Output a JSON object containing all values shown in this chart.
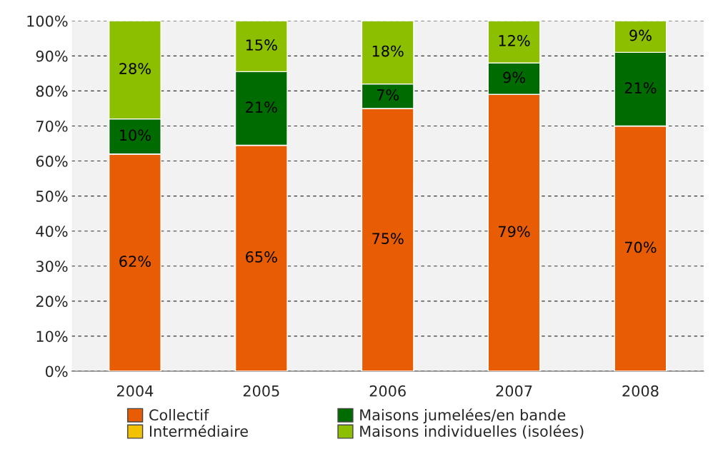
{
  "chart_data": {
    "type": "bar",
    "stacked": true,
    "categories": [
      "2004",
      "2005",
      "2006",
      "2007",
      "2008"
    ],
    "series": [
      {
        "name": "Collectif",
        "color": "#e85d04",
        "values": [
          62,
          64.5,
          75,
          79,
          70
        ],
        "value_labels": [
          "62%",
          "65%",
          "75%",
          "79%",
          "70%"
        ]
      },
      {
        "name": "Intermédiaire",
        "color": "#f2c200",
        "values": [
          0,
          0,
          0,
          0,
          0
        ],
        "value_labels": [
          null,
          null,
          null,
          null,
          null
        ]
      },
      {
        "name": "Maisons jumelées/en bande",
        "color": "#006b00",
        "values": [
          10,
          21,
          7,
          9,
          21
        ],
        "value_labels": [
          "10%",
          "21%",
          "7%",
          "9%",
          "21%"
        ]
      },
      {
        "name": "Maisons individuelles (isolées)",
        "color": "#8cbf00",
        "values": [
          28,
          14.5,
          18,
          12,
          9
        ],
        "value_labels": [
          "28%",
          "15%",
          "18%",
          "12%",
          "9%"
        ]
      }
    ],
    "ylim": [
      0,
      100
    ],
    "yticks": [
      {
        "value": 0,
        "label": "0%"
      },
      {
        "value": 10,
        "label": "10%"
      },
      {
        "value": 20,
        "label": "20%"
      },
      {
        "value": 30,
        "label": "30%"
      },
      {
        "value": 40,
        "label": "40%"
      },
      {
        "value": 50,
        "label": "50%"
      },
      {
        "value": 60,
        "label": "60%"
      },
      {
        "value": 70,
        "label": "70%"
      },
      {
        "value": 80,
        "label": "80%"
      },
      {
        "value": 90,
        "label": "90%"
      },
      {
        "value": 100,
        "label": "100%"
      }
    ],
    "grid": "y",
    "legend": "bottom"
  }
}
